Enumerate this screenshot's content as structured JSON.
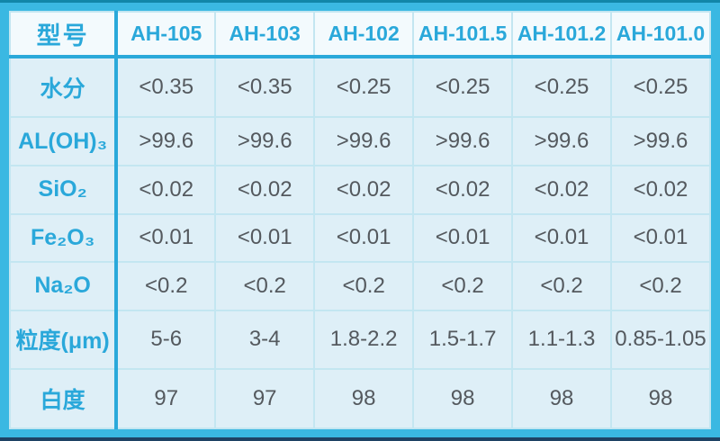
{
  "colors": {
    "frame_cyan": "#3ab8e2",
    "frame_top_edge": "#1186a8",
    "frame_bottom_edge": "#1e4264",
    "grid_light": "#c3e6f1",
    "grid_strong": "#2aa9da",
    "header_bg": "#f3fafd",
    "cell_bg": "#deeff7",
    "text_blue": "#2aa8da",
    "text_gray": "#54595e"
  },
  "chart_data": {
    "type": "table",
    "title": "",
    "columns": [
      "型号",
      "AH-105",
      "AH-103",
      "AH-102",
      "AH-101.5",
      "AH-101.2",
      "AH-101.0"
    ],
    "rows": [
      [
        "水分",
        "<0.35",
        "<0.35",
        "<0.25",
        "<0.25",
        "<0.25",
        "<0.25"
      ],
      [
        "AL(OH)₃",
        ">99.6",
        ">99.6",
        ">99.6",
        ">99.6",
        ">99.6",
        ">99.6"
      ],
      [
        "SiO₂",
        "<0.02",
        "<0.02",
        "<0.02",
        "<0.02",
        "<0.02",
        "<0.02"
      ],
      [
        "Fe₂O₃",
        "<0.01",
        "<0.01",
        "<0.01",
        "<0.01",
        "<0.01",
        "<0.01"
      ],
      [
        "Na₂O",
        "<0.2",
        "<0.2",
        "<0.2",
        "<0.2",
        "<0.2",
        "<0.2"
      ],
      [
        "粒度(μm)",
        "5-6",
        "3-4",
        "1.8-2.2",
        "1.5-1.7",
        "1.1-1.3",
        "0.85-1.05"
      ],
      [
        "白度",
        "97",
        "97",
        "98",
        "98",
        "98",
        "98"
      ]
    ]
  }
}
